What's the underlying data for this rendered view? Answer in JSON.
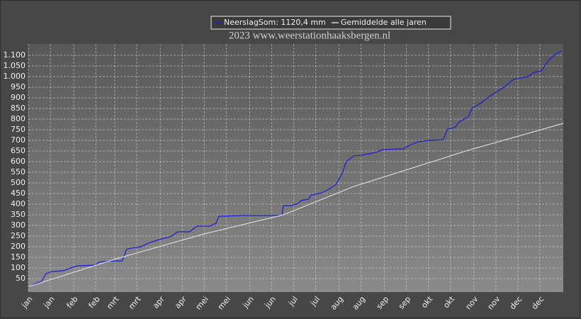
{
  "chart_data": {
    "type": "line",
    "subtitle": "2023  www.weerstationhaaksbergen.nl",
    "xlim": [
      0,
      365
    ],
    "ylim": [
      0,
      1150
    ],
    "grid": true,
    "legend": "top",
    "xticks": [
      {
        "value": 0,
        "label": "jan"
      },
      {
        "value": 15,
        "label": "jan"
      },
      {
        "value": 31,
        "label": "feb"
      },
      {
        "value": 46,
        "label": "feb"
      },
      {
        "value": 59,
        "label": "mrt"
      },
      {
        "value": 74,
        "label": "mrt"
      },
      {
        "value": 90,
        "label": "apr"
      },
      {
        "value": 105,
        "label": "apr"
      },
      {
        "value": 120,
        "label": "mei"
      },
      {
        "value": 135,
        "label": "mei"
      },
      {
        "value": 151,
        "label": "jun"
      },
      {
        "value": 166,
        "label": "jun"
      },
      {
        "value": 181,
        "label": "jul"
      },
      {
        "value": 196,
        "label": "jul"
      },
      {
        "value": 212,
        "label": "aug"
      },
      {
        "value": 227,
        "label": "aug"
      },
      {
        "value": 243,
        "label": "sep"
      },
      {
        "value": 258,
        "label": "sep"
      },
      {
        "value": 273,
        "label": "okt"
      },
      {
        "value": 288,
        "label": "okt"
      },
      {
        "value": 304,
        "label": "nov"
      },
      {
        "value": 319,
        "label": "nov"
      },
      {
        "value": 334,
        "label": "dec"
      },
      {
        "value": 349,
        "label": "dec"
      }
    ],
    "yticks": [
      50,
      100,
      150,
      200,
      250,
      300,
      350,
      400,
      450,
      500,
      550,
      600,
      650,
      700,
      750,
      800,
      850,
      900,
      950,
      {
        "value": 1000,
        "label": "1.000"
      },
      {
        "value": 1050,
        "label": "1.050"
      },
      {
        "value": 1100,
        "label": "1.100"
      }
    ],
    "series": [
      {
        "name": "NeerslagSom: 1120,4 mm",
        "color": "#1a1adc",
        "x": [
          0,
          5,
          9,
          11,
          12,
          16,
          24,
          29,
          32,
          34,
          46,
          48,
          56,
          64,
          67,
          70,
          77,
          82,
          89,
          97,
          102,
          110,
          115,
          124,
          128,
          130,
          147,
          173,
          174,
          179,
          184,
          186,
          191,
          193,
          200,
          205,
          210,
          214,
          217,
          222,
          227,
          237,
          242,
          256,
          261,
          266,
          273,
          283,
          286,
          291,
          294,
          300,
          303,
          307,
          312,
          319,
          324,
          331,
          341,
          345,
          350,
          355,
          360,
          364
        ],
        "values": [
          10,
          27,
          37,
          60,
          73,
          83,
          87,
          100,
          107,
          110,
          113,
          127,
          133,
          133,
          187,
          193,
          200,
          217,
          233,
          247,
          270,
          270,
          297,
          297,
          310,
          343,
          347,
          347,
          393,
          393,
          403,
          417,
          423,
          443,
          453,
          470,
          493,
          543,
          600,
          627,
          630,
          643,
          657,
          660,
          680,
          693,
          700,
          703,
          753,
          760,
          787,
          810,
          853,
          867,
          893,
          927,
          947,
          987,
          1000,
          1020,
          1027,
          1077,
          1107,
          1120.4
        ]
      },
      {
        "name": "Gemiddelde alle jaren",
        "color": "#d8d8d8",
        "x": [
          0,
          60,
          120,
          174,
          222,
          300,
          365
        ],
        "values": [
          12,
          143,
          260,
          350,
          483,
          653,
          780
        ]
      }
    ]
  }
}
